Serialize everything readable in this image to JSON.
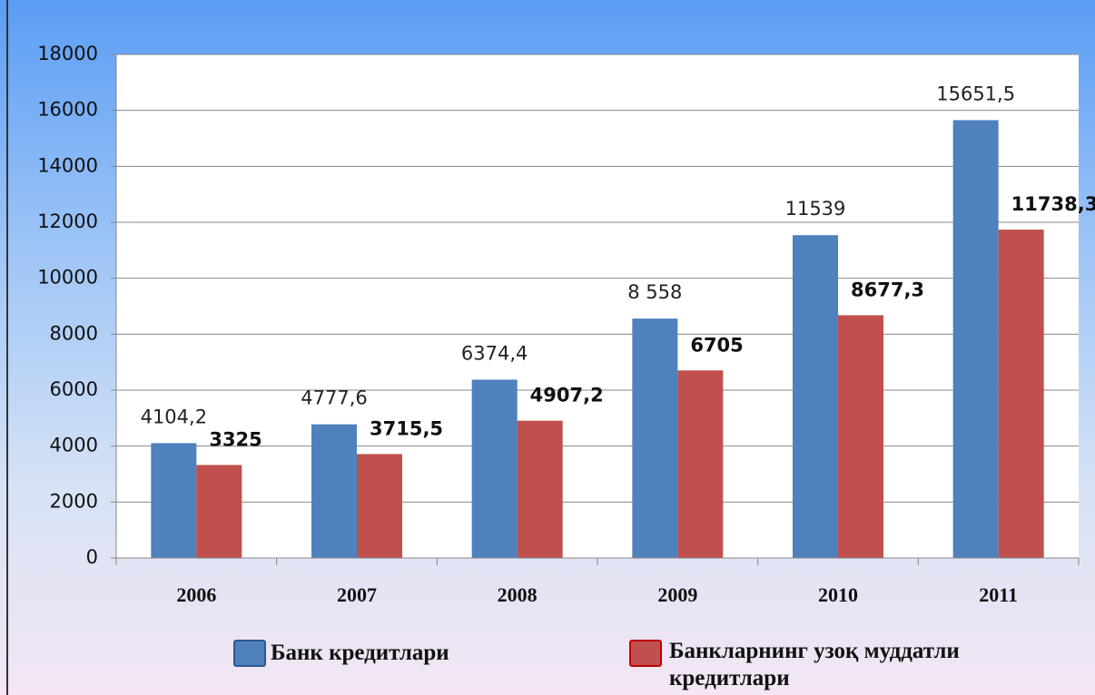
{
  "chart_data": {
    "type": "bar",
    "categories": [
      "2006",
      "2007",
      "2008",
      "2009",
      "2010",
      "2011"
    ],
    "series": [
      {
        "name": "Банк кредитлари",
        "color": "#4f81bd",
        "values": [
          4104.2,
          4777.6,
          6374.4,
          8558,
          11539,
          15651.5
        ],
        "value_labels": [
          "4104,2",
          "4777,6",
          "6374,4",
          "8 558",
          "11539",
          "15651,5"
        ]
      },
      {
        "name": "Банкларнинг узоқ муддатли кредитлари",
        "color": "#c0504d",
        "values": [
          3325,
          3715.5,
          4907.2,
          6705,
          8677.3,
          11738.3
        ],
        "value_labels": [
          "3325",
          "3715,5",
          "4907,2",
          "6705",
          "8677,3",
          "11738,3"
        ]
      }
    ],
    "ylim": [
      0,
      18000
    ],
    "yticks": [
      0,
      2000,
      4000,
      6000,
      8000,
      10000,
      12000,
      14000,
      16000,
      18000
    ],
    "grid": true,
    "legend": "bottom"
  }
}
